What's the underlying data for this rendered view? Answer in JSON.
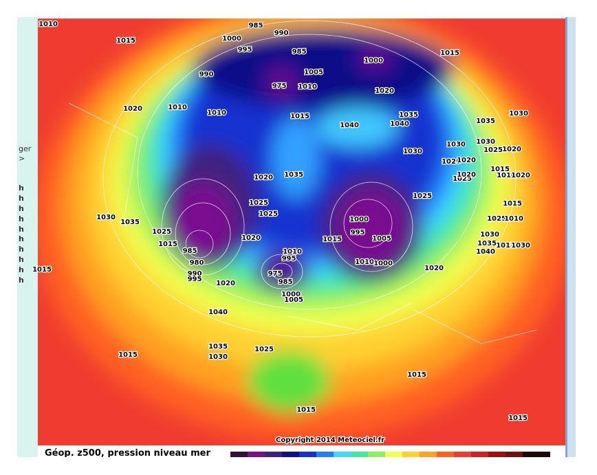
{
  "sidebar": {
    "lines": [
      "ger",
      ">",
      "h",
      "h",
      "h",
      "h",
      "h",
      "h",
      "h",
      "h",
      "h",
      "h"
    ]
  },
  "map": {
    "labels": [
      "1010",
      "1015",
      "985",
      "990",
      "1000",
      "995",
      "985",
      "1000",
      "1015",
      "990",
      "1005",
      "975",
      "1010",
      "1020",
      "1020",
      "1010",
      "1010",
      "1015",
      "1035",
      "1040",
      "1040",
      "1030",
      "1035",
      "1030",
      "1030",
      "1030",
      "1025",
      "1020",
      "1020",
      "1020",
      "1015",
      "1025",
      "1020",
      "1010",
      "1020",
      "1035",
      "1020",
      "1025",
      "1025",
      "1025",
      "1015",
      "1030",
      "1035",
      "1000",
      "1025",
      "1010",
      "995",
      "1025",
      "1005",
      "1020",
      "1015",
      "1030",
      "1035",
      "1015",
      "1030",
      "1015",
      "1040",
      "985",
      "1010",
      "995",
      "1010",
      "1000",
      "980",
      "975",
      "1020",
      "990",
      "985",
      "995",
      "1020",
      "1000",
      "1005",
      "1015",
      "1040",
      "1035",
      "1025",
      "1015",
      "1030",
      "1015",
      "1015",
      "1015"
    ],
    "copyright": "Copyright 2014 Meteociel.fr"
  },
  "footer": {
    "title": "Géop. z500, pression niveau mer"
  }
}
